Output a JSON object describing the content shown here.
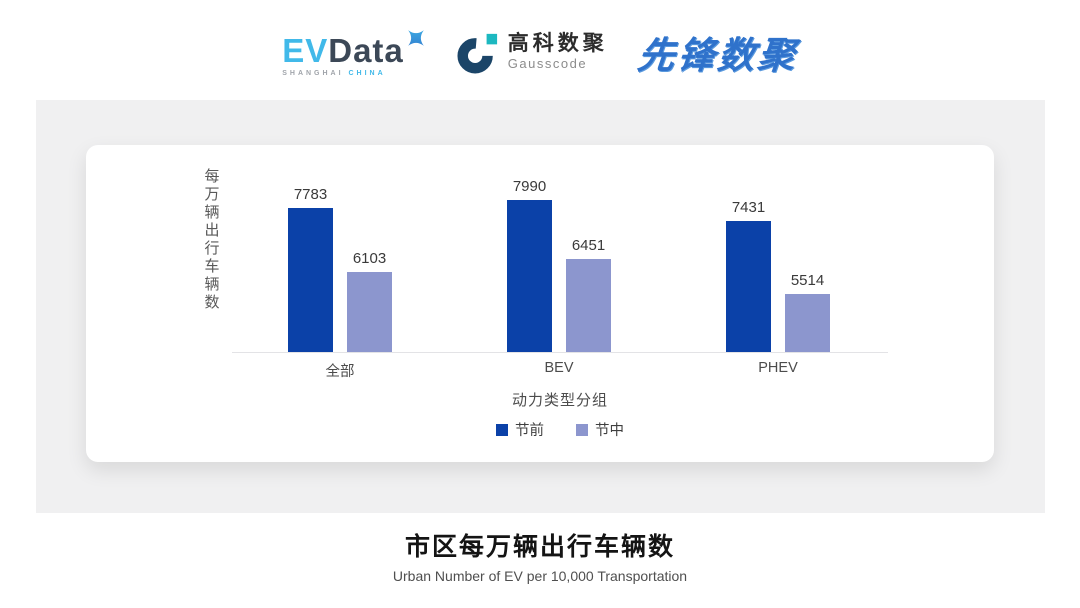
{
  "header": {
    "evdata": {
      "ev": "EV",
      "data": "Data",
      "sub_left": "SHANGHAI ",
      "sub_right": "CHINA"
    },
    "gausscode": {
      "cn": "高科数聚",
      "en": "Gausscode"
    },
    "xianfeng": "先锋数聚"
  },
  "chart_data": {
    "type": "bar",
    "categories": [
      "全部",
      "BEV",
      "PHEV"
    ],
    "series": [
      {
        "name": "节前",
        "color": "#0b41a8",
        "values": [
          7783,
          7990,
          7431
        ]
      },
      {
        "name": "节中",
        "color": "#8c96ce",
        "values": [
          6103,
          6451,
          5514
        ]
      }
    ],
    "xlabel": "动力类型分组",
    "ylabel": "每万辆出行车辆数",
    "ylim": [
      4000,
      8200
    ],
    "grid": false,
    "legend_position": "bottom",
    "value_labels": true
  },
  "footer": {
    "title": "市区每万辆出行车辆数",
    "subtitle": "Urban Number of EV per 10,000 Transportation"
  },
  "colors": {
    "panel_bg": "#f0f0f1",
    "card_bg": "#ffffff",
    "axis_line": "#e3e3e6",
    "evdata_blue": "#41b9e9",
    "evdata_dark": "#3c4857",
    "gauss_navy": "#1b4568",
    "gauss_teal": "#1cb8c0",
    "xianfeng_blue": "#2f72cb"
  }
}
